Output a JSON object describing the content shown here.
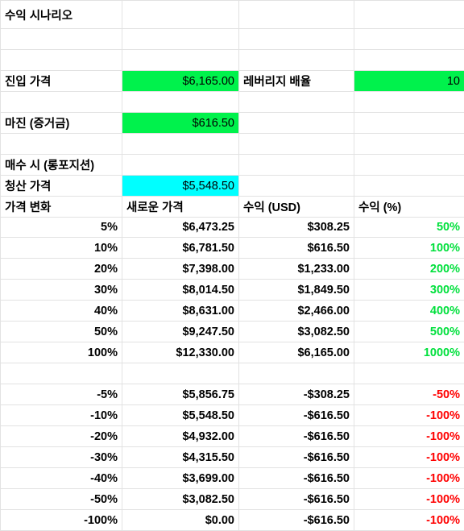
{
  "sheet": {
    "title": "수익 시나리오",
    "entry": {
      "label": "진입 가격",
      "value": "$6,165.00",
      "leverage_label": "레버리지 배율",
      "leverage_value": "10"
    },
    "margin": {
      "label": "마진 (증거금)",
      "value": "$616.50"
    },
    "long_label": "매수 시 (롱포지션)",
    "liquidation": {
      "label": "청산 가격",
      "value": "$5,548.50"
    },
    "headers": [
      "가격 변화",
      "새로운 가격",
      "수익 (USD)",
      "수익 (%)"
    ],
    "colors": {
      "fill_green": "#00f24c",
      "fill_cyan": "#00ffff",
      "positive_text": "#00e03c",
      "negative_text": "#ff0000"
    },
    "up_rows": [
      {
        "change": "5%",
        "price": "$6,473.25",
        "profit": "$308.25",
        "pct": "50%"
      },
      {
        "change": "10%",
        "price": "$6,781.50",
        "profit": "$616.50",
        "pct": "100%"
      },
      {
        "change": "20%",
        "price": "$7,398.00",
        "profit": "$1,233.00",
        "pct": "200%"
      },
      {
        "change": "30%",
        "price": "$8,014.50",
        "profit": "$1,849.50",
        "pct": "300%"
      },
      {
        "change": "40%",
        "price": "$8,631.00",
        "profit": "$2,466.00",
        "pct": "400%"
      },
      {
        "change": "50%",
        "price": "$9,247.50",
        "profit": "$3,082.50",
        "pct": "500%"
      },
      {
        "change": "100%",
        "price": "$12,330.00",
        "profit": "$6,165.00",
        "pct": "1000%"
      }
    ],
    "down_rows": [
      {
        "change": "-5%",
        "price": "$5,856.75",
        "profit": "-$308.25",
        "pct": "-50%"
      },
      {
        "change": "-10%",
        "price": "$5,548.50",
        "profit": "-$616.50",
        "pct": "-100%"
      },
      {
        "change": "-20%",
        "price": "$4,932.00",
        "profit": "-$616.50",
        "pct": "-100%"
      },
      {
        "change": "-30%",
        "price": "$4,315.50",
        "profit": "-$616.50",
        "pct": "-100%"
      },
      {
        "change": "-40%",
        "price": "$3,699.00",
        "profit": "-$616.50",
        "pct": "-100%"
      },
      {
        "change": "-50%",
        "price": "$3,082.50",
        "profit": "-$616.50",
        "pct": "-100%"
      },
      {
        "change": "-100%",
        "price": "$0.00",
        "profit": "-$616.50",
        "pct": "-100%"
      }
    ]
  }
}
